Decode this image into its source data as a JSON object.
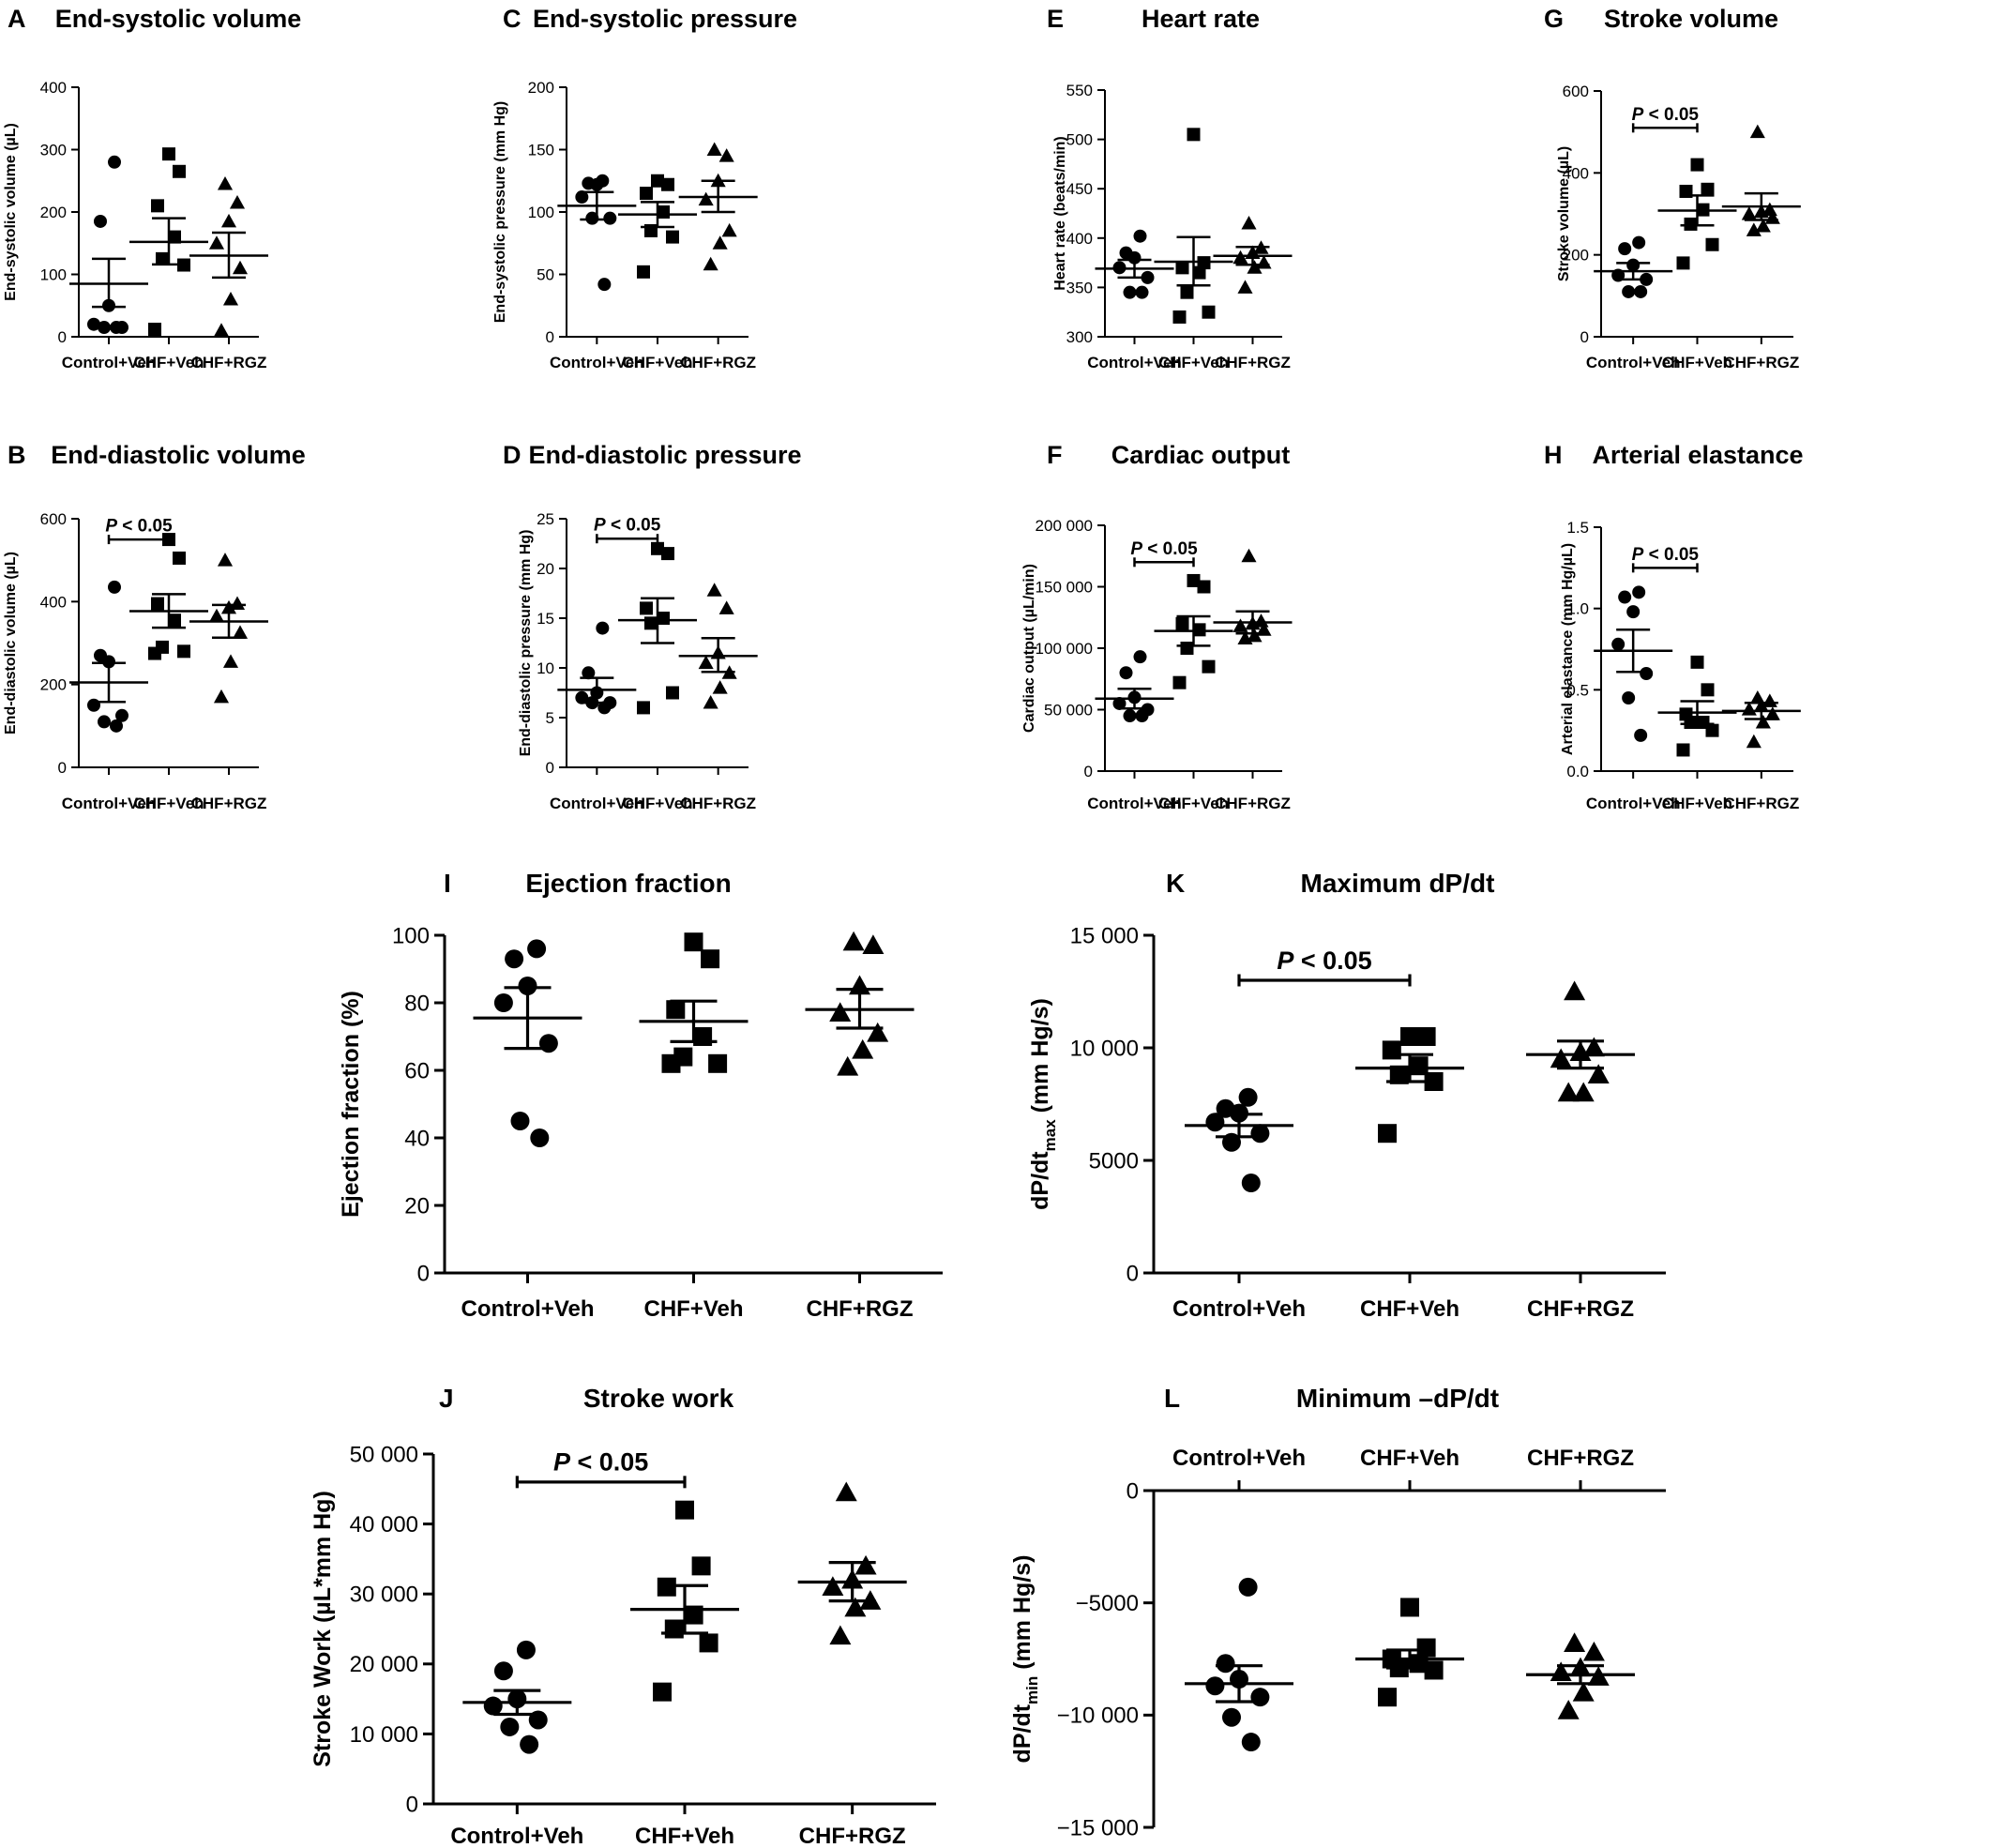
{
  "groups": [
    "Control+Veh",
    "CHF+Veh",
    "CHF+RGZ"
  ],
  "chart_data": [
    {
      "type": "scatter",
      "panel": "A",
      "title": "End-systolic volume",
      "ylabel": "End-systolic volume (µL)",
      "ylabel_sub": "",
      "ylabel_tail": "",
      "ylim": [
        0,
        400
      ],
      "ticks": [
        0,
        100,
        200,
        300,
        400
      ],
      "tick_labels": [
        "0",
        "100",
        "200",
        "300",
        "400"
      ],
      "series": [
        {
          "name": "Control+Veh",
          "marker": "circle",
          "values": [
            280,
            185,
            50,
            20,
            15,
            15,
            15
          ],
          "mean": 85,
          "sem_low": 48,
          "sem_high": 125
        },
        {
          "name": "CHF+Veh",
          "marker": "square",
          "values": [
            293,
            265,
            210,
            160,
            125,
            115,
            12
          ],
          "mean": 152,
          "sem_low": 116,
          "sem_high": 190
        },
        {
          "name": "CHF+RGZ",
          "marker": "triangle",
          "values": [
            245,
            215,
            185,
            150,
            110,
            60,
            10
          ],
          "mean": 130,
          "sem_low": 95,
          "sem_high": 167
        }
      ],
      "significance": []
    },
    {
      "type": "scatter",
      "panel": "B",
      "title": "End-diastolic volume",
      "ylabel": "End-diastolic volume (µL)",
      "ylabel_sub": "",
      "ylabel_tail": "",
      "ylim": [
        0,
        600
      ],
      "ticks": [
        0,
        200,
        400,
        600
      ],
      "tick_labels": [
        "0",
        "200",
        "400",
        "600"
      ],
      "series": [
        {
          "name": "Control+Veh",
          "marker": "circle",
          "values": [
            435,
            270,
            255,
            150,
            125,
            110,
            100
          ],
          "mean": 205,
          "sem_low": 158,
          "sem_high": 252
        },
        {
          "name": "CHF+Veh",
          "marker": "square",
          "values": [
            550,
            505,
            395,
            355,
            290,
            280,
            275
          ],
          "mean": 377,
          "sem_low": 337,
          "sem_high": 418
        },
        {
          "name": "CHF+RGZ",
          "marker": "triangle",
          "values": [
            500,
            395,
            385,
            365,
            325,
            255,
            170
          ],
          "mean": 352,
          "sem_low": 313,
          "sem_high": 392
        }
      ],
      "significance": [
        {
          "from": 0,
          "to": 1,
          "y": 550,
          "label": "P < 0.05"
        }
      ]
    },
    {
      "type": "scatter",
      "panel": "C",
      "title": "End-systolic pressure",
      "ylabel": "End-systolic pressure (mm Hg)",
      "ylabel_sub": "",
      "ylabel_tail": "",
      "ylim": [
        0,
        200
      ],
      "ticks": [
        0,
        50,
        100,
        150,
        200
      ],
      "tick_labels": [
        "0",
        "50",
        "100",
        "150",
        "200"
      ],
      "series": [
        {
          "name": "Control+Veh",
          "marker": "circle",
          "values": [
            125,
            123,
            122,
            112,
            95,
            95,
            42
          ],
          "mean": 105,
          "sem_low": 94,
          "sem_high": 116
        },
        {
          "name": "CHF+Veh",
          "marker": "square",
          "values": [
            125,
            122,
            115,
            100,
            85,
            80,
            52
          ],
          "mean": 98,
          "sem_low": 88,
          "sem_high": 108
        },
        {
          "name": "CHF+RGZ",
          "marker": "triangle",
          "values": [
            150,
            145,
            125,
            110,
            85,
            75,
            58
          ],
          "mean": 112,
          "sem_low": 100,
          "sem_high": 125
        }
      ],
      "significance": []
    },
    {
      "type": "scatter",
      "panel": "D",
      "title": "End-diastolic pressure",
      "ylabel": "End-diastolic pressure (mm Hg)",
      "ylabel_sub": "",
      "ylabel_tail": "",
      "ylim": [
        0,
        25
      ],
      "ticks": [
        0,
        5,
        10,
        15,
        20,
        25
      ],
      "tick_labels": [
        "0",
        "5",
        "10",
        "15",
        "20",
        "25"
      ],
      "series": [
        {
          "name": "Control+Veh",
          "marker": "circle",
          "values": [
            14,
            9.5,
            7.5,
            7,
            6.5,
            6.5,
            6
          ],
          "mean": 7.8,
          "sem_low": 6.5,
          "sem_high": 9
        },
        {
          "name": "CHF+Veh",
          "marker": "square",
          "values": [
            22,
            21.5,
            16,
            15,
            14.5,
            7.5,
            6
          ],
          "mean": 14.8,
          "sem_low": 12.5,
          "sem_high": 17
        },
        {
          "name": "CHF+RGZ",
          "marker": "triangle",
          "values": [
            17.8,
            16,
            11.5,
            10.5,
            9.5,
            8,
            6.5
          ],
          "mean": 11.2,
          "sem_low": 9.6,
          "sem_high": 13
        }
      ],
      "significance": [
        {
          "from": 0,
          "to": 1,
          "y": 23,
          "label": "P < 0.05"
        }
      ]
    },
    {
      "type": "scatter",
      "panel": "E",
      "title": "Heart rate",
      "ylabel": "Heart rate (beats/min)",
      "ylabel_sub": "",
      "ylabel_tail": "",
      "ylim": [
        300,
        550
      ],
      "ticks": [
        300,
        350,
        400,
        450,
        500,
        550
      ],
      "tick_labels": [
        "300",
        "350",
        "400",
        "450",
        "500",
        "550"
      ],
      "series": [
        {
          "name": "Control+Veh",
          "marker": "circle",
          "values": [
            402,
            385,
            380,
            370,
            360,
            345,
            345
          ],
          "mean": 369,
          "sem_low": 360,
          "sem_high": 378
        },
        {
          "name": "CHF+Veh",
          "marker": "square",
          "values": [
            505,
            375,
            370,
            365,
            345,
            325,
            320
          ],
          "mean": 376,
          "sem_low": 352,
          "sem_high": 401
        },
        {
          "name": "CHF+RGZ",
          "marker": "triangle",
          "values": [
            415,
            390,
            385,
            380,
            375,
            370,
            350
          ],
          "mean": 382,
          "sem_low": 373,
          "sem_high": 391
        }
      ],
      "significance": []
    },
    {
      "type": "scatter",
      "panel": "F",
      "title": "Cardiac output",
      "ylabel": "Cardiac output (µL/min)",
      "ylabel_sub": "",
      "ylabel_tail": "",
      "ylim": [
        0,
        200000
      ],
      "ticks": [
        0,
        50000,
        100000,
        150000,
        200000
      ],
      "tick_labels": [
        "0",
        "50 000",
        "100 000",
        "150 000",
        "200 000"
      ],
      "series": [
        {
          "name": "Control+Veh",
          "marker": "circle",
          "values": [
            93000,
            80000,
            60000,
            55000,
            50000,
            45000,
            45000
          ],
          "mean": 59000,
          "sem_low": 51000,
          "sem_high": 67000
        },
        {
          "name": "CHF+Veh",
          "marker": "square",
          "values": [
            155000,
            150000,
            120000,
            115000,
            100000,
            85000,
            72000
          ],
          "mean": 114000,
          "sem_low": 102000,
          "sem_high": 126000
        },
        {
          "name": "CHF+RGZ",
          "marker": "triangle",
          "values": [
            175000,
            122000,
            120000,
            118000,
            115000,
            110000,
            108000
          ],
          "mean": 121000,
          "sem_low": 112000,
          "sem_high": 130000
        }
      ],
      "significance": [
        {
          "from": 0,
          "to": 1,
          "y": 170000,
          "label": "P < 0.05"
        }
      ]
    },
    {
      "type": "scatter",
      "panel": "G",
      "title": "Stroke volume",
      "ylabel": "Stroke volume (µL)",
      "ylabel_sub": "",
      "ylabel_tail": "",
      "ylim": [
        0,
        600
      ],
      "ticks": [
        0,
        200,
        400,
        600
      ],
      "tick_labels": [
        "0",
        "200",
        "400",
        "600"
      ],
      "series": [
        {
          "name": "Control+Veh",
          "marker": "circle",
          "values": [
            230,
            215,
            175,
            150,
            140,
            110,
            110
          ],
          "mean": 160,
          "sem_low": 140,
          "sem_high": 180
        },
        {
          "name": "CHF+Veh",
          "marker": "square",
          "values": [
            420,
            360,
            355,
            310,
            275,
            225,
            180
          ],
          "mean": 308,
          "sem_low": 272,
          "sem_high": 345
        },
        {
          "name": "CHF+RGZ",
          "marker": "triangle",
          "values": [
            500,
            310,
            305,
            300,
            290,
            270,
            260
          ],
          "mean": 318,
          "sem_low": 285,
          "sem_high": 350
        }
      ],
      "significance": [
        {
          "from": 0,
          "to": 1,
          "y": 510,
          "label": "P < 0.05"
        }
      ]
    },
    {
      "type": "scatter",
      "panel": "H",
      "title": "Arterial elastance",
      "ylabel": "Arterial elastance (mm Hg/µL)",
      "ylabel_sub": "",
      "ylabel_tail": "",
      "ylim": [
        0,
        1.5
      ],
      "ticks": [
        0,
        0.5,
        1.0,
        1.5
      ],
      "tick_labels": [
        "0.0",
        "0.5",
        "1.0",
        "1.5"
      ],
      "series": [
        {
          "name": "Control+Veh",
          "marker": "circle",
          "values": [
            1.1,
            1.07,
            0.98,
            0.78,
            0.6,
            0.45,
            0.22
          ],
          "mean": 0.74,
          "sem_low": 0.61,
          "sem_high": 0.87
        },
        {
          "name": "CHF+Veh",
          "marker": "square",
          "values": [
            0.67,
            0.5,
            0.35,
            0.3,
            0.3,
            0.25,
            0.13
          ],
          "mean": 0.36,
          "sem_low": 0.29,
          "sem_high": 0.43
        },
        {
          "name": "CHF+RGZ",
          "marker": "triangle",
          "values": [
            0.45,
            0.43,
            0.4,
            0.38,
            0.35,
            0.3,
            0.18
          ],
          "mean": 0.37,
          "sem_low": 0.32,
          "sem_high": 0.42
        }
      ],
      "significance": [
        {
          "from": 0,
          "to": 1,
          "y": 1.25,
          "label": "P < 0.05"
        }
      ]
    },
    {
      "type": "scatter",
      "panel": "I",
      "title": "Ejection fraction",
      "ylabel": "Ejection fraction (%)",
      "ylabel_sub": "",
      "ylabel_tail": "",
      "ylim": [
        0,
        100
      ],
      "ticks": [
        0,
        20,
        40,
        60,
        80,
        100
      ],
      "tick_labels": [
        "0",
        "20",
        "40",
        "60",
        "80",
        "100"
      ],
      "series": [
        {
          "name": "Control+Veh",
          "marker": "circle",
          "values": [
            96,
            93,
            85,
            80,
            68,
            45,
            40
          ],
          "mean": 75.5,
          "sem_low": 66.5,
          "sem_high": 84.5
        },
        {
          "name": "CHF+Veh",
          "marker": "square",
          "values": [
            98,
            93,
            78,
            70,
            64,
            62,
            62
          ],
          "mean": 74.5,
          "sem_low": 68.5,
          "sem_high": 80.5
        },
        {
          "name": "CHF+RGZ",
          "marker": "triangle",
          "values": [
            98,
            97,
            85,
            77,
            71,
            66,
            61
          ],
          "mean": 78,
          "sem_low": 72.5,
          "sem_high": 84
        }
      ],
      "significance": []
    },
    {
      "type": "scatter",
      "panel": "J",
      "title": "Stroke work",
      "ylabel": "Stroke Work (µL*mm Hg)",
      "ylabel_sub": "",
      "ylabel_tail": "",
      "ylim": [
        0,
        50000
      ],
      "ticks": [
        0,
        10000,
        20000,
        30000,
        40000,
        50000
      ],
      "tick_labels": [
        "0",
        "10 000",
        "20 000",
        "30 000",
        "40 000",
        "50 000"
      ],
      "series": [
        {
          "name": "Control+Veh",
          "marker": "circle",
          "values": [
            22000,
            19000,
            15000,
            14000,
            12000,
            11000,
            8500
          ],
          "mean": 14500,
          "sem_low": 12800,
          "sem_high": 16200
        },
        {
          "name": "CHF+Veh",
          "marker": "square",
          "values": [
            42000,
            34000,
            31000,
            27000,
            25000,
            23000,
            16000
          ],
          "mean": 27800,
          "sem_low": 24400,
          "sem_high": 31200
        },
        {
          "name": "CHF+RGZ",
          "marker": "triangle",
          "values": [
            44500,
            34000,
            32000,
            31000,
            29000,
            28000,
            24000
          ],
          "mean": 31700,
          "sem_low": 29000,
          "sem_high": 34500
        }
      ],
      "significance": [
        {
          "from": 0,
          "to": 1,
          "y": 46000,
          "label": "P < 0.05"
        }
      ]
    },
    {
      "type": "scatter",
      "panel": "K",
      "title": "Maximum dP/dt",
      "ylabel": "dP/dt",
      "ylabel_sub": "max",
      "ylabel_tail": " (mm Hg/s)",
      "ylim": [
        0,
        15000
      ],
      "ticks": [
        0,
        5000,
        10000,
        15000
      ],
      "tick_labels": [
        "0",
        "5000",
        "10 000",
        "15 000"
      ],
      "series": [
        {
          "name": "Control+Veh",
          "marker": "circle",
          "values": [
            7800,
            7300,
            7100,
            6700,
            6200,
            5800,
            4000
          ],
          "mean": 6550,
          "sem_low": 6050,
          "sem_high": 7050
        },
        {
          "name": "CHF+Veh",
          "marker": "square",
          "values": [
            10500,
            10500,
            9900,
            9200,
            8800,
            8500,
            6200
          ],
          "mean": 9100,
          "sem_low": 8500,
          "sem_high": 9700
        },
        {
          "name": "CHF+RGZ",
          "marker": "triangle",
          "values": [
            12500,
            10000,
            9800,
            9500,
            8800,
            8000,
            8000
          ],
          "mean": 9700,
          "sem_low": 9100,
          "sem_high": 10300
        }
      ],
      "significance": [
        {
          "from": 0,
          "to": 1,
          "y": 13000,
          "label": "P < 0.05"
        }
      ]
    },
    {
      "type": "scatter",
      "panel": "L",
      "title": "Minimum –dP/dt",
      "ylabel": "dP/dt",
      "ylabel_sub": "min",
      "ylabel_tail": " (mm Hg/s)",
      "ylim": [
        -15000,
        0
      ],
      "ticks": [
        -15000,
        -10000,
        -5000,
        0
      ],
      "tick_labels": [
        "−15 000",
        "−10 000",
        "−5000",
        "0"
      ],
      "x_axis_top": true,
      "series": [
        {
          "name": "Control+Veh",
          "marker": "circle",
          "values": [
            -4300,
            -7700,
            -8400,
            -8700,
            -9200,
            -10100,
            -11200
          ],
          "mean": -8600,
          "sem_low": -9400,
          "sem_high": -7800
        },
        {
          "name": "CHF+Veh",
          "marker": "square",
          "values": [
            -5200,
            -7000,
            -7500,
            -7700,
            -7900,
            -8000,
            -9200
          ],
          "mean": -7500,
          "sem_low": -7900,
          "sem_high": -7100
        },
        {
          "name": "CHF+RGZ",
          "marker": "triangle",
          "values": [
            -6800,
            -7200,
            -7900,
            -8100,
            -8300,
            -9000,
            -9800
          ],
          "mean": -8200,
          "sem_low": -8600,
          "sem_high": -7800
        }
      ],
      "significance": []
    }
  ]
}
